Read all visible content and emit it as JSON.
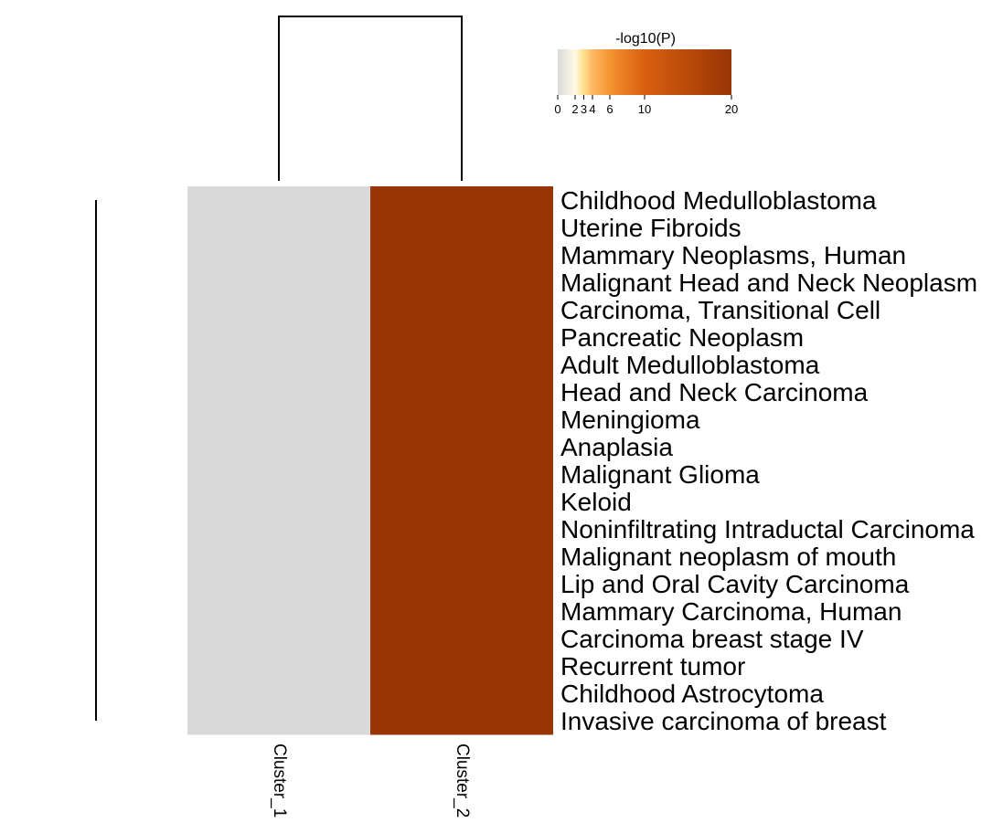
{
  "chart_data": {
    "type": "heatmap",
    "columns": [
      "Cluster_1",
      "Cluster_2"
    ],
    "rows": [
      "Childhood Medulloblastoma",
      "Uterine Fibroids",
      "Mammary Neoplasms, Human",
      "Malignant Head and Neck Neoplasm",
      "Carcinoma, Transitional Cell",
      "Pancreatic Neoplasm",
      "Adult Medulloblastoma",
      "Head and Neck Carcinoma",
      "Meningioma",
      "Anaplasia",
      "Malignant Glioma",
      "Keloid",
      "Noninfiltrating Intraductal Carcinoma",
      "Malignant neoplasm of mouth",
      "Lip and Oral Cavity Carcinoma",
      "Mammary Carcinoma, Human",
      "Carcinoma breast stage IV",
      "Recurrent tumor",
      "Childhood Astrocytoma",
      "Invasive carcinoma of breast"
    ],
    "values": [
      [
        0,
        20
      ],
      [
        0,
        20
      ],
      [
        0,
        20
      ],
      [
        0,
        20
      ],
      [
        0,
        20
      ],
      [
        0,
        20
      ],
      [
        0,
        20
      ],
      [
        0,
        20
      ],
      [
        0,
        20
      ],
      [
        0,
        20
      ],
      [
        0,
        20
      ],
      [
        0,
        20
      ],
      [
        0,
        20
      ],
      [
        0,
        20
      ],
      [
        0,
        20
      ],
      [
        0,
        20
      ],
      [
        0,
        20
      ],
      [
        0,
        20
      ],
      [
        0,
        20
      ],
      [
        0,
        20
      ]
    ],
    "colorbar": {
      "title": "-log10(P)",
      "range": [
        0,
        20
      ],
      "ticks": [
        0,
        2,
        3,
        4,
        6,
        10,
        20
      ],
      "stops": [
        {
          "value": 0,
          "color": "#d9d9d9"
        },
        {
          "value": 2,
          "color": "#fffbe6"
        },
        {
          "value": 3,
          "color": "#fee08b"
        },
        {
          "value": 4,
          "color": "#fdb863"
        },
        {
          "value": 6,
          "color": "#f59331"
        },
        {
          "value": 10,
          "color": "#d9600f"
        },
        {
          "value": 20,
          "color": "#993404"
        }
      ]
    },
    "column_dendrogram": true,
    "row_dendrogram": true
  }
}
